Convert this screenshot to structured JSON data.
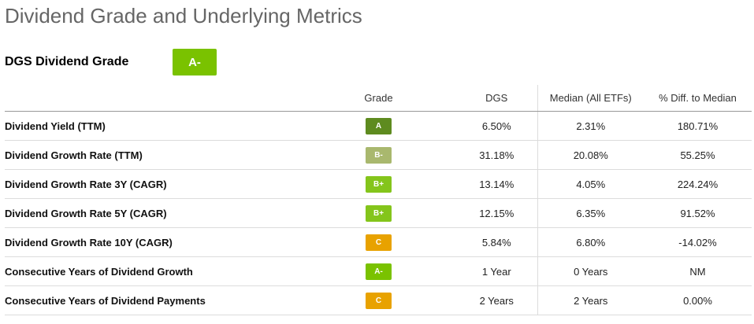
{
  "page": {
    "title": "Dividend Grade and Underlying Metrics"
  },
  "grade_header": {
    "label": "DGS Dividend Grade",
    "grade": "A-",
    "color": "#7ac200"
  },
  "table": {
    "headers": {
      "metric": "",
      "grade": "Grade",
      "ticker": "DGS",
      "median": "Median (All ETFs)",
      "diff": "% Diff. to Median"
    },
    "grade_colors": {
      "A": "#5e8b1f",
      "A-": "#7ac200",
      "B+": "#84c51b",
      "B-": "#a9b86e",
      "C": "#e8a200"
    },
    "rows": [
      {
        "metric": "Dividend Yield (TTM)",
        "grade": "A",
        "value": "6.50%",
        "median": "2.31%",
        "diff": "180.71%"
      },
      {
        "metric": "Dividend Growth Rate (TTM)",
        "grade": "B-",
        "value": "31.18%",
        "median": "20.08%",
        "diff": "55.25%"
      },
      {
        "metric": "Dividend Growth Rate 3Y (CAGR)",
        "grade": "B+",
        "value": "13.14%",
        "median": "4.05%",
        "diff": "224.24%"
      },
      {
        "metric": "Dividend Growth Rate 5Y (CAGR)",
        "grade": "B+",
        "value": "12.15%",
        "median": "6.35%",
        "diff": "91.52%"
      },
      {
        "metric": "Dividend Growth Rate 10Y (CAGR)",
        "grade": "C",
        "value": "5.84%",
        "median": "6.80%",
        "diff": "-14.02%"
      },
      {
        "metric": "Consecutive Years of Dividend Growth",
        "grade": "A-",
        "value": "1 Year",
        "median": "0 Years",
        "diff": "NM"
      },
      {
        "metric": "Consecutive Years of Dividend Payments",
        "grade": "C",
        "value": "2 Years",
        "median": "2 Years",
        "diff": "0.00%"
      }
    ]
  }
}
